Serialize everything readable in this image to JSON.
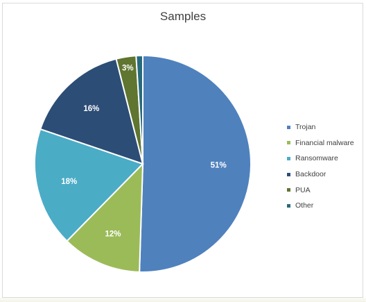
{
  "chart_data": {
    "type": "pie",
    "title": "Samples",
    "slices": [
      {
        "label": "Trojan",
        "value": 51,
        "display": "51%",
        "color": "#4f81bd"
      },
      {
        "label": "Financial malware",
        "value": 12,
        "display": "12%",
        "color": "#9bbb59"
      },
      {
        "label": "Ransomware",
        "value": 18,
        "display": "18%",
        "color": "#4bacc6"
      },
      {
        "label": "Backdoor",
        "value": 16,
        "display": "16%",
        "color": "#2c4d75"
      },
      {
        "label": "PUA",
        "value": 3,
        "display": "3%",
        "color": "#5f7530"
      },
      {
        "label": "Other",
        "value": 1,
        "display": "",
        "color": "#276a7c"
      }
    ],
    "legend_position": "right",
    "start_angle": "top, clockwise"
  }
}
